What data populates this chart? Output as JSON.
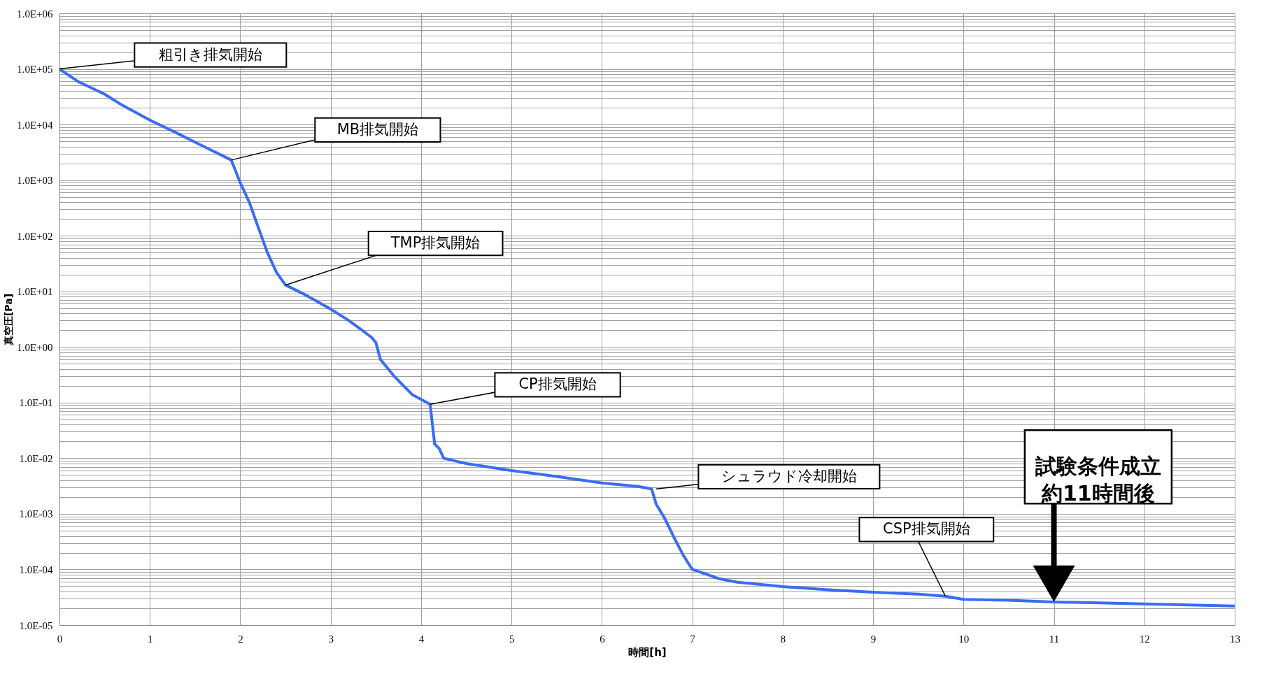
{
  "chart_data": {
    "type": "line",
    "xlabel": "時間[h]",
    "ylabel": "真空圧[Pa]",
    "x": [
      0,
      0.2,
      0.5,
      0.7,
      1.0,
      1.3,
      1.6,
      1.9,
      2.0,
      2.1,
      2.2,
      2.3,
      2.4,
      2.5,
      2.7,
      3.0,
      3.2,
      3.45,
      3.5,
      3.55,
      3.7,
      3.9,
      4.1,
      4.15,
      4.2,
      4.25,
      4.5,
      5.0,
      5.5,
      6.0,
      6.4,
      6.55,
      6.6,
      6.7,
      6.8,
      6.9,
      7.0,
      7.3,
      7.5,
      8.0,
      8.5,
      9.0,
      9.5,
      9.8,
      10.0,
      10.5,
      11.0,
      11.5,
      12.0,
      12.5,
      13.0
    ],
    "series": [
      {
        "color": "#3a6cf4",
        "values": [
          100000.0,
          60000.0,
          35000.0,
          22000.0,
          12000.0,
          7000.0,
          4000.0,
          2300.0,
          900.0,
          400.0,
          140.0,
          50.0,
          22.0,
          13.0,
          9,
          4.8,
          3,
          1.5,
          1.2,
          0.6,
          0.3,
          0.14,
          0.093,
          0.018,
          0.015,
          0.01,
          0.008,
          0.006,
          0.0047,
          0.0036,
          0.0031,
          0.0028,
          0.0015,
          0.0008,
          0.00037,
          0.00018,
          0.0001,
          6.8e-05,
          5.9e-05,
          4.9e-05,
          4.3e-05,
          3.9e-05,
          3.6e-05,
          3.3e-05,
          2.9e-05,
          2.8e-05,
          2.6e-05,
          2.5e-05,
          2.4e-05,
          2.3e-05,
          2.2e-05
        ]
      }
    ],
    "log": "y",
    "grid": true,
    "marker": "none",
    "line_style": "solid",
    "xlim": [
      0,
      13
    ],
    "xticks": [
      0,
      1,
      2,
      3,
      4,
      5,
      6,
      7,
      8,
      9,
      10,
      11,
      12,
      13
    ],
    "ylim": [
      1e-05,
      1000000.0
    ],
    "yticks": [
      {
        "value": 1e-05,
        "label": "1.0E-05"
      },
      {
        "value": 2e-05,
        "label": null
      },
      {
        "value": 3e-05,
        "label": null
      },
      {
        "value": 4e-05,
        "label": null
      },
      {
        "value": 5e-05,
        "label": null
      },
      {
        "value": 6e-05,
        "label": null
      },
      {
        "value": 7e-05,
        "label": null
      },
      {
        "value": 8e-05,
        "label": null
      },
      {
        "value": 9e-05,
        "label": null
      },
      {
        "value": 0.0001,
        "label": "1.0E-04"
      },
      {
        "value": 0.0002,
        "label": null
      },
      {
        "value": 0.0003,
        "label": null
      },
      {
        "value": 0.0004,
        "label": null
      },
      {
        "value": 0.0005,
        "label": null
      },
      {
        "value": 0.0006,
        "label": null
      },
      {
        "value": 0.0007,
        "label": null
      },
      {
        "value": 0.0008,
        "label": null
      },
      {
        "value": 0.0009,
        "label": null
      },
      {
        "value": 0.001,
        "label": "1.0E-03"
      },
      {
        "value": 0.002,
        "label": null
      },
      {
        "value": 0.003,
        "label": null
      },
      {
        "value": 0.004,
        "label": null
      },
      {
        "value": 0.005,
        "label": null
      },
      {
        "value": 0.006,
        "label": null
      },
      {
        "value": 0.007,
        "label": null
      },
      {
        "value": 0.008,
        "label": null
      },
      {
        "value": 0.009,
        "label": null
      },
      {
        "value": 0.01,
        "label": "1.0E-02"
      },
      {
        "value": 0.02,
        "label": null
      },
      {
        "value": 0.03,
        "label": null
      },
      {
        "value": 0.04,
        "label": null
      },
      {
        "value": 0.05,
        "label": null
      },
      {
        "value": 0.06,
        "label": null
      },
      {
        "value": 0.07,
        "label": null
      },
      {
        "value": 0.08,
        "label": null
      },
      {
        "value": 0.09,
        "label": null
      },
      {
        "value": 0.1,
        "label": "1.0E-01"
      },
      {
        "value": 0.2,
        "label": null
      },
      {
        "value": 0.3,
        "label": null
      },
      {
        "value": 0.4,
        "label": null
      },
      {
        "value": 0.5,
        "label": null
      },
      {
        "value": 0.6,
        "label": null
      },
      {
        "value": 0.7,
        "label": null
      },
      {
        "value": 0.8,
        "label": null
      },
      {
        "value": 0.9,
        "label": null
      },
      {
        "value": 1,
        "label": "1.0E+00"
      },
      {
        "value": 2,
        "label": null
      },
      {
        "value": 3,
        "label": null
      },
      {
        "value": 4,
        "label": null
      },
      {
        "value": 5,
        "label": null
      },
      {
        "value": 6,
        "label": null
      },
      {
        "value": 7,
        "label": null
      },
      {
        "value": 8,
        "label": null
      },
      {
        "value": 9,
        "label": null
      },
      {
        "value": 10,
        "label": "1.0E+01"
      },
      {
        "value": 20,
        "label": null
      },
      {
        "value": 30,
        "label": null
      },
      {
        "value": 40,
        "label": null
      },
      {
        "value": 50,
        "label": null
      },
      {
        "value": 60,
        "label": null
      },
      {
        "value": 70,
        "label": null
      },
      {
        "value": 80,
        "label": null
      },
      {
        "value": 90,
        "label": null
      },
      {
        "value": 100,
        "label": "1.0E+02"
      },
      {
        "value": 200,
        "label": null
      },
      {
        "value": 300,
        "label": null
      },
      {
        "value": 400,
        "label": null
      },
      {
        "value": 500,
        "label": null
      },
      {
        "value": 600,
        "label": null
      },
      {
        "value": 700,
        "label": null
      },
      {
        "value": 800,
        "label": null
      },
      {
        "value": 900,
        "label": null
      },
      {
        "value": 1000,
        "label": "1.0E+03"
      },
      {
        "value": 2000,
        "label": null
      },
      {
        "value": 3000,
        "label": null
      },
      {
        "value": 4000,
        "label": null
      },
      {
        "value": 5000,
        "label": null
      },
      {
        "value": 6000,
        "label": null
      },
      {
        "value": 7000,
        "label": null
      },
      {
        "value": 8000,
        "label": null
      },
      {
        "value": 9000,
        "label": null
      },
      {
        "value": 10000,
        "label": "1.0E+04"
      },
      {
        "value": 20000,
        "label": null
      },
      {
        "value": 30000,
        "label": null
      },
      {
        "value": 40000,
        "label": null
      },
      {
        "value": 50000,
        "label": null
      },
      {
        "value": 60000,
        "label": null
      },
      {
        "value": 70000,
        "label": null
      },
      {
        "value": 80000,
        "label": null
      },
      {
        "value": 90000,
        "label": null
      },
      {
        "value": 100000,
        "label": "1.0E+05"
      },
      {
        "value": 200000,
        "label": null
      },
      {
        "value": 300000,
        "label": null
      },
      {
        "value": 400000,
        "label": null
      },
      {
        "value": 500000,
        "label": null
      },
      {
        "value": 600000,
        "label": null
      },
      {
        "value": 700000,
        "label": null
      },
      {
        "value": 800000,
        "label": null
      },
      {
        "value": 900000,
        "label": null
      },
      {
        "value": 1000000,
        "label": "1.0E+06"
      }
    ],
    "annotations": [
      {
        "text": "粗引き排気開始",
        "x": 0,
        "y": 100000
      },
      {
        "text": "MB排気開始",
        "x": 1.9,
        "y": 2300
      },
      {
        "text": "TMP排気開始",
        "x": 2.5,
        "y": 13
      },
      {
        "text": "CP排気開始",
        "x": 4.1,
        "y": 0.093
      },
      {
        "text": "シュラウド冷却開始",
        "x": 6.6,
        "y": 0.0028
      },
      {
        "text": "CSP排気開始",
        "x": 9.8,
        "y": 3.3e-05
      },
      {
        "text": "試験条件成立約11時間後",
        "x": 11,
        "y": 2.6e-05
      }
    ]
  }
}
